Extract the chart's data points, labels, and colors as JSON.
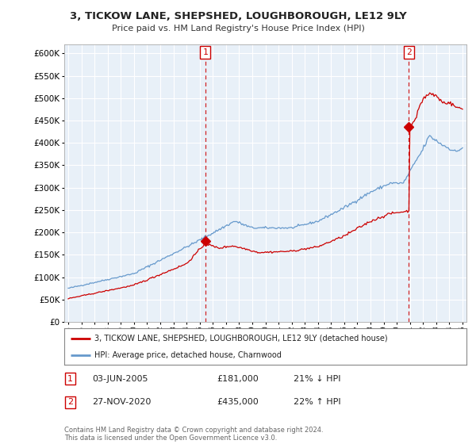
{
  "title": "3, TICKOW LANE, SHEPSHED, LOUGHBOROUGH, LE12 9LY",
  "subtitle": "Price paid vs. HM Land Registry's House Price Index (HPI)",
  "legend_line1": "3, TICKOW LANE, SHEPSHED, LOUGHBOROUGH, LE12 9LY (detached house)",
  "legend_line2": "HPI: Average price, detached house, Charnwood",
  "annotation1_date": "03-JUN-2005",
  "annotation1_price": "£181,000",
  "annotation1_hpi": "21% ↓ HPI",
  "annotation1_year": 2005.42,
  "annotation1_value": 181000,
  "annotation2_date": "27-NOV-2020",
  "annotation2_price": "£435,000",
  "annotation2_hpi": "22% ↑ HPI",
  "annotation2_year": 2020.92,
  "annotation2_value": 435000,
  "footer": "Contains HM Land Registry data © Crown copyright and database right 2024.\nThis data is licensed under the Open Government Licence v3.0.",
  "ylim": [
    0,
    620000
  ],
  "yticks": [
    0,
    50000,
    100000,
    150000,
    200000,
    250000,
    300000,
    350000,
    400000,
    450000,
    500000,
    550000,
    600000
  ],
  "xlim_start": 1994.7,
  "xlim_end": 2025.3,
  "hpi_color": "#6699cc",
  "price_color": "#cc0000",
  "dashed_color": "#cc0000",
  "chart_bg": "#e8f0f8",
  "background_color": "#ffffff",
  "grid_color": "#ffffff"
}
